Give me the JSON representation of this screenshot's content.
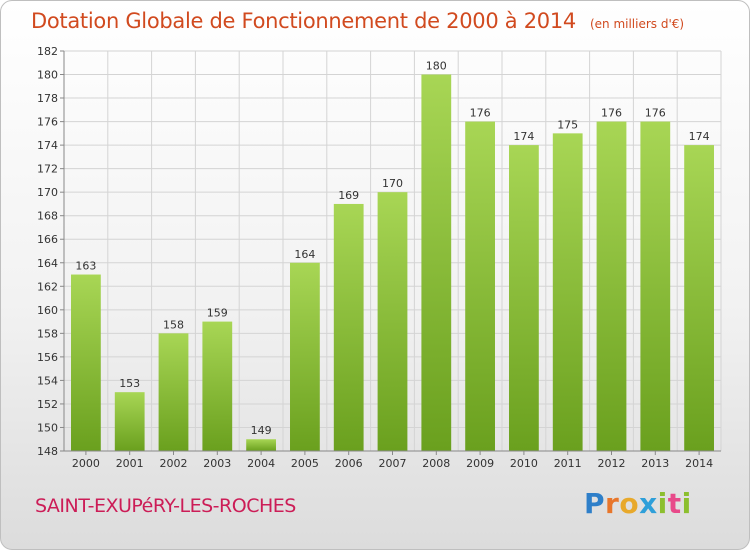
{
  "header": {
    "title": "Dotation Globale de Fonctionnement de 2000 à 2014",
    "unit": "(en milliers d'€)"
  },
  "footer": {
    "commune": "SAINT-EXUPéRY-LES-ROCHES",
    "logo": "Proxiti"
  },
  "chart_data": {
    "type": "bar",
    "title": "Dotation Globale de Fonctionnement de 2000 à 2014",
    "subtitle": "(en milliers d'€)",
    "xlabel": "",
    "ylabel": "",
    "categories": [
      "2000",
      "2001",
      "2002",
      "2003",
      "2004",
      "2005",
      "2006",
      "2007",
      "2008",
      "2009",
      "2010",
      "2011",
      "2012",
      "2013",
      "2014"
    ],
    "values": [
      163,
      153,
      158,
      159,
      149,
      164,
      169,
      170,
      180,
      176,
      174,
      175,
      176,
      176,
      174
    ],
    "ylim": [
      148,
      182
    ],
    "yticks": [
      148,
      150,
      152,
      154,
      156,
      158,
      160,
      162,
      164,
      166,
      168,
      170,
      172,
      174,
      176,
      178,
      180,
      182
    ],
    "grid": true,
    "legend": "none",
    "colors": {
      "bar_top": "#a8d655",
      "bar_bottom": "#6aa01e",
      "grid": "#d4d4d4",
      "axis": "#888888"
    }
  }
}
